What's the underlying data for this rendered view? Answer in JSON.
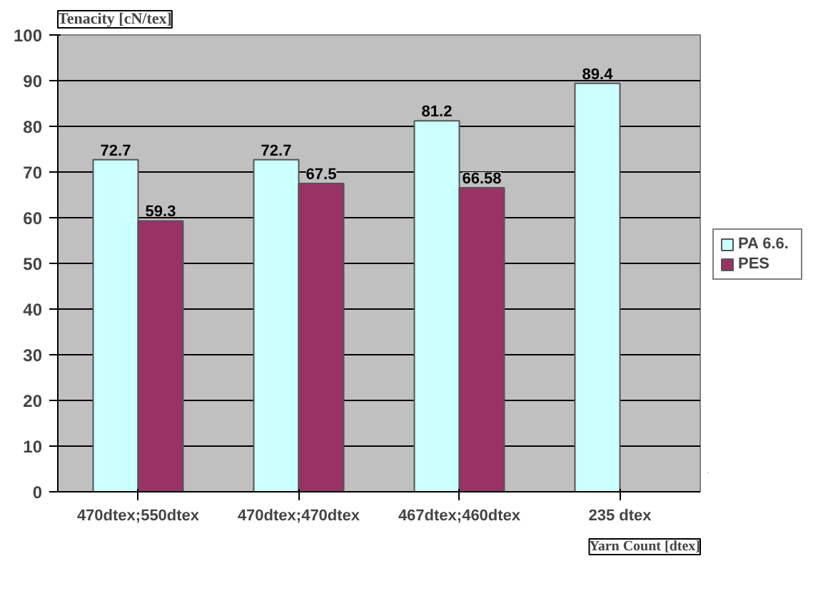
{
  "chart_data": {
    "type": "bar",
    "ylabel": "Tenacity [cN/tex]",
    "xlabel": "Yarn Count [dtex]",
    "categories": [
      "470dtex;550dtex",
      "470dtex;470dtex",
      "467dtex;460dtex",
      "235 dtex"
    ],
    "series": [
      {
        "name": "PA 6.6.",
        "color": "#ccffff",
        "values": [
          72.7,
          72.7,
          81.2,
          89.4
        ]
      },
      {
        "name": "PES",
        "color": "#993366",
        "values": [
          59.3,
          67.5,
          66.58,
          null
        ]
      }
    ],
    "ylim": [
      0,
      100
    ],
    "yticks": [
      0,
      10,
      20,
      30,
      40,
      50,
      60,
      70,
      80,
      90,
      100
    ],
    "grid": "y",
    "legend": "right",
    "data_labels": true
  }
}
